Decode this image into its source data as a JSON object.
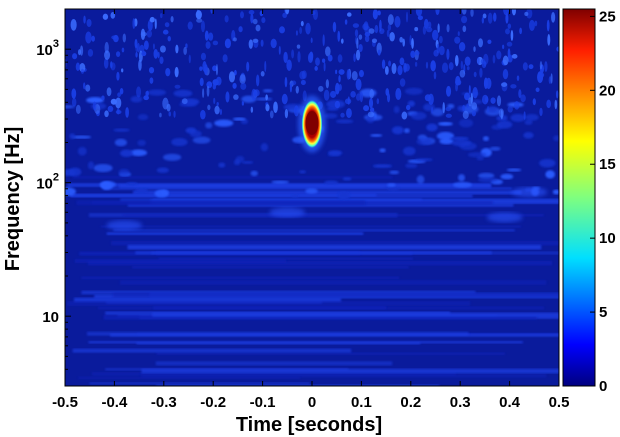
{
  "chart_data": {
    "type": "heatmap",
    "title": "",
    "xlabel": "Time [seconds]",
    "ylabel": "Frequency [Hz]",
    "xlim": [
      -0.5,
      0.5
    ],
    "ylim": [
      3,
      2000
    ],
    "yscale": "log",
    "x_ticks": [
      "-0.5",
      "-0.4",
      "-0.3",
      "-0.2",
      "-0.1",
      "0",
      "0.1",
      "0.2",
      "0.3",
      "0.4",
      "0.5"
    ],
    "y_ticks": [
      {
        "value": 10,
        "label": "10",
        "sup": ""
      },
      {
        "value": 100,
        "label": "10",
        "sup": "2"
      },
      {
        "value": 1000,
        "label": "10",
        "sup": "3"
      }
    ],
    "colorbar": {
      "min": 0,
      "max": 25.5,
      "ticks": [
        "0",
        "5",
        "10",
        "15",
        "20",
        "25"
      ],
      "colormap": "jet"
    },
    "background_energy": 2,
    "features": [
      {
        "name": "",
        "time": 0.0,
        "frequency": 280,
        "energy": 25.5
      },
      {
        "name": "",
        "time": 0.0,
        "frequency_range": [
          180,
          420
        ],
        "energy": 12
      }
    ],
    "colors": {
      "background": "#0a1fa8",
      "bright": "#1e46ff",
      "peak": "#8b0000"
    }
  }
}
